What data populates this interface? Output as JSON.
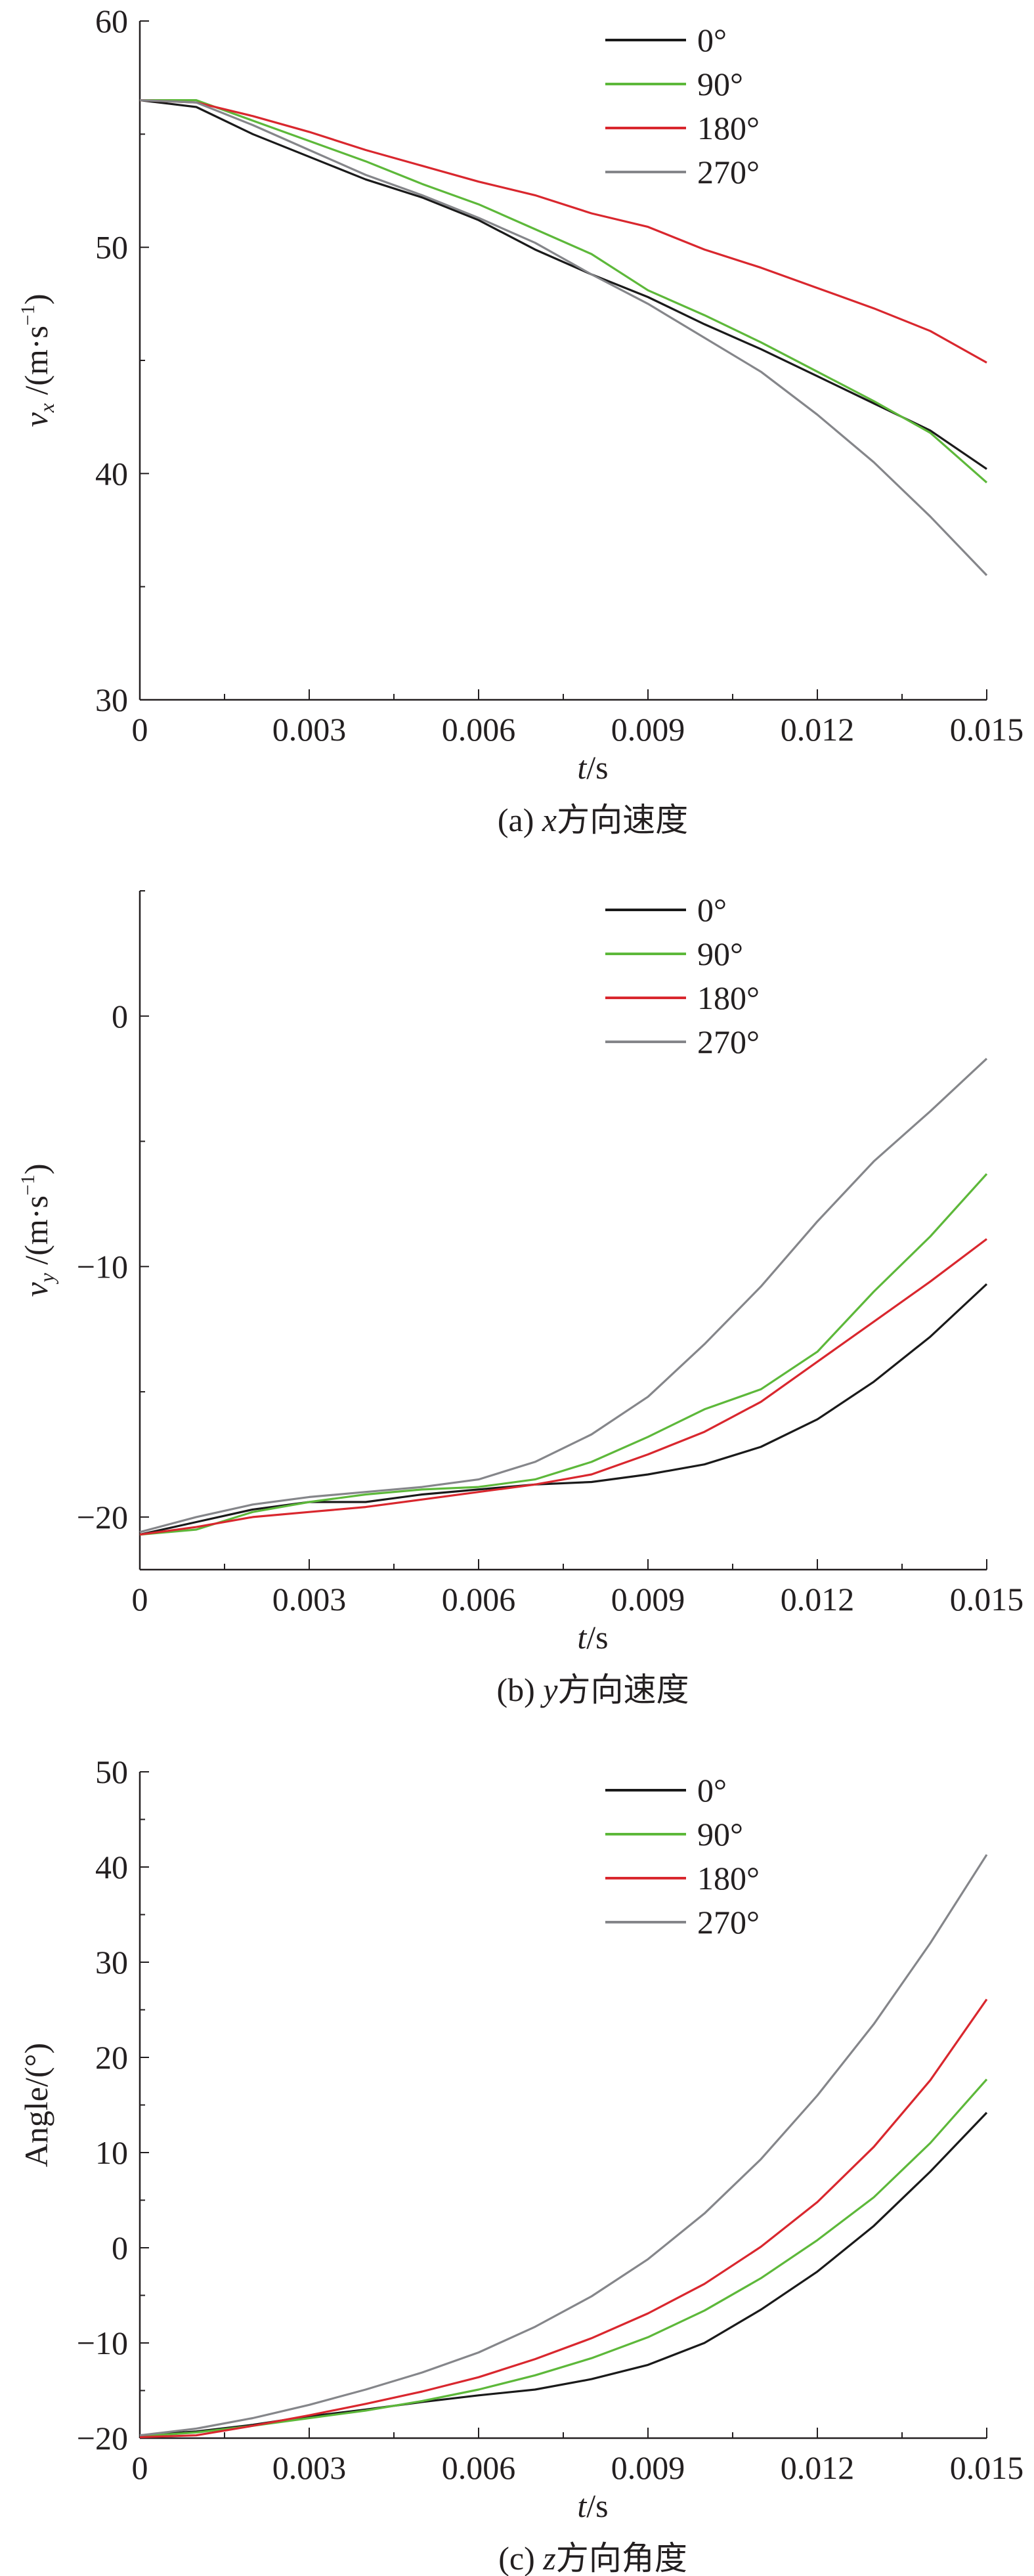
{
  "legend": [
    "0°",
    "90°",
    "180°",
    "270°"
  ],
  "colors": {
    "0°": "#1a1a1a",
    "90°": "#5db83a",
    "180°": "#d9272e",
    "270°": "#85868a"
  },
  "chart_data": [
    {
      "type": "line",
      "caption": {
        "prefix": "(a) ",
        "var": "x",
        "text": "方向速度"
      },
      "xlabel": {
        "var": "t",
        "unit": "/s"
      },
      "ylabel": {
        "var": "v",
        "sub": "x",
        "unit": " /(m·s",
        "sup": "−1",
        "close": ")"
      },
      "xlim": [
        0,
        0.015
      ],
      "ylim": [
        30,
        60
      ],
      "xticks": [
        "0",
        "0.003",
        "0.006",
        "0.009",
        "0.012",
        "0.015"
      ],
      "yticks": [
        30,
        40,
        50,
        60
      ],
      "x": [
        0,
        0.001,
        0.002,
        0.003,
        0.004,
        0.005,
        0.006,
        0.007,
        0.008,
        0.009,
        0.01,
        0.011,
        0.012,
        0.013,
        0.014,
        0.015
      ],
      "series": [
        {
          "name": "0°",
          "values": [
            56.5,
            56.2,
            55.0,
            54.0,
            53.0,
            52.2,
            51.2,
            49.9,
            48.8,
            47.8,
            46.6,
            45.5,
            44.3,
            43.1,
            41.9,
            40.2
          ]
        },
        {
          "name": "90°",
          "values": [
            56.5,
            56.5,
            55.6,
            54.7,
            53.8,
            52.8,
            51.9,
            50.8,
            49.7,
            48.1,
            47.0,
            45.8,
            44.5,
            43.2,
            41.8,
            39.6
          ]
        },
        {
          "name": "180°",
          "values": [
            56.5,
            56.4,
            55.8,
            55.1,
            54.3,
            53.6,
            52.9,
            52.3,
            51.5,
            50.9,
            49.9,
            49.1,
            48.2,
            47.3,
            46.3,
            44.9
          ]
        },
        {
          "name": "270°",
          "values": [
            56.5,
            56.4,
            55.4,
            54.3,
            53.2,
            52.3,
            51.3,
            50.2,
            48.8,
            47.5,
            46.0,
            44.5,
            42.6,
            40.5,
            38.1,
            35.5
          ]
        }
      ]
    },
    {
      "type": "line",
      "caption": {
        "prefix": "(b) ",
        "var": "y",
        "text": "方向速度"
      },
      "xlabel": {
        "var": "t",
        "unit": "/s"
      },
      "ylabel": {
        "var": "v",
        "sub": "y",
        "unit": " /(m·s",
        "sup": "−1",
        "close": ")"
      },
      "xlim": [
        0,
        0.015
      ],
      "ylim": [
        -22.1,
        5
      ],
      "xticks": [
        "0",
        "0.003",
        "0.006",
        "0.009",
        "0.012",
        "0.015"
      ],
      "yticks": [
        -20,
        -10,
        0
      ],
      "x": [
        0,
        0.001,
        0.002,
        0.003,
        0.004,
        0.005,
        0.006,
        0.007,
        0.008,
        0.009,
        0.01,
        0.011,
        0.012,
        0.013,
        0.014,
        0.015
      ],
      "series": [
        {
          "name": "0°",
          "values": [
            -20.7,
            -20.2,
            -19.7,
            -19.4,
            -19.4,
            -19.1,
            -18.9,
            -18.7,
            -18.6,
            -18.3,
            -17.9,
            -17.2,
            -16.1,
            -14.6,
            -12.8,
            -10.7
          ]
        },
        {
          "name": "90°",
          "values": [
            -20.7,
            -20.5,
            -19.8,
            -19.4,
            -19.1,
            -18.9,
            -18.8,
            -18.5,
            -17.8,
            -16.8,
            -15.7,
            -14.9,
            -13.4,
            -11.0,
            -8.8,
            -6.3
          ]
        },
        {
          "name": "180°",
          "values": [
            -20.7,
            -20.4,
            -20.0,
            -19.8,
            -19.6,
            -19.3,
            -19.0,
            -18.7,
            -18.3,
            -17.5,
            -16.6,
            -15.4,
            -13.8,
            -12.2,
            -10.6,
            -8.9
          ]
        },
        {
          "name": "270°",
          "values": [
            -20.6,
            -20.0,
            -19.5,
            -19.2,
            -19.0,
            -18.8,
            -18.5,
            -17.8,
            -16.7,
            -15.2,
            -13.1,
            -10.8,
            -8.2,
            -5.8,
            -3.8,
            -1.7
          ]
        }
      ]
    },
    {
      "type": "line",
      "caption": {
        "prefix": "(c) ",
        "var": "z",
        "text": "方向角度"
      },
      "xlabel": {
        "var": "t",
        "unit": "/s"
      },
      "ylabel": {
        "plain": "Angle/(°)"
      },
      "xlim": [
        0,
        0.015
      ],
      "ylim": [
        -20,
        50
      ],
      "xticks": [
        "0",
        "0.003",
        "0.006",
        "0.009",
        "0.012",
        "0.015"
      ],
      "yticks": [
        -20,
        -10,
        0,
        10,
        20,
        30,
        40,
        50
      ],
      "x": [
        0,
        0.001,
        0.002,
        0.003,
        0.004,
        0.005,
        0.006,
        0.007,
        0.008,
        0.009,
        0.01,
        0.011,
        0.012,
        0.013,
        0.014,
        0.015
      ],
      "series": [
        {
          "name": "0°",
          "values": [
            -19.7,
            -19.3,
            -18.6,
            -17.7,
            -17.0,
            -16.2,
            -15.5,
            -14.9,
            -13.8,
            -12.3,
            -10.0,
            -6.5,
            -2.5,
            2.3,
            8.0,
            14.2
          ]
        },
        {
          "name": "90°",
          "values": [
            -19.8,
            -19.4,
            -18.7,
            -17.9,
            -17.1,
            -16.1,
            -14.9,
            -13.4,
            -11.6,
            -9.4,
            -6.6,
            -3.2,
            0.8,
            5.3,
            11.0,
            17.7
          ]
        },
        {
          "name": "180°",
          "values": [
            -19.9,
            -19.7,
            -18.7,
            -17.6,
            -16.4,
            -15.1,
            -13.6,
            -11.7,
            -9.5,
            -6.9,
            -3.8,
            0.1,
            4.8,
            10.6,
            17.6,
            26.1
          ]
        },
        {
          "name": "270°",
          "values": [
            -19.7,
            -19.0,
            -17.9,
            -16.5,
            -14.9,
            -13.1,
            -11.0,
            -8.3,
            -5.1,
            -1.2,
            3.6,
            9.3,
            16.0,
            23.5,
            32.0,
            41.3
          ]
        }
      ]
    }
  ]
}
